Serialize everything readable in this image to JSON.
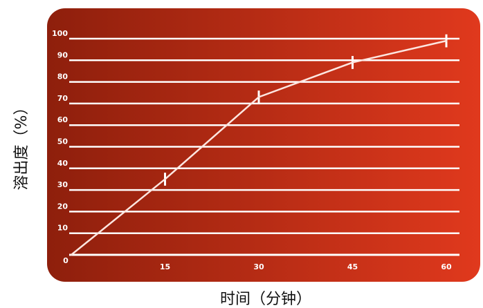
{
  "colors": {
    "panel_left": "#8e1f0c",
    "panel_right": "#e0391d",
    "gridline": "#ffffff",
    "series_line": "#fde6e0",
    "error_bar": "#ffffff"
  },
  "chart_data": {
    "type": "line",
    "title": "",
    "xlabel": "时间（分钟）",
    "ylabel": "溶出度（%）",
    "x": [
      0,
      15,
      30,
      45,
      60
    ],
    "xlim": [
      0,
      60
    ],
    "ylim": [
      0,
      100
    ],
    "xticks": [
      "0",
      "15",
      "30",
      "45",
      "60"
    ],
    "yticks": [
      "10",
      "20",
      "30",
      "40",
      "50",
      "60",
      "70",
      "80",
      "90",
      "100"
    ],
    "grid": true,
    "legend": "none",
    "series": [
      {
        "values": [
          0,
          35,
          73,
          89,
          99
        ],
        "error": [
          0,
          3,
          3,
          3,
          3
        ]
      }
    ]
  }
}
